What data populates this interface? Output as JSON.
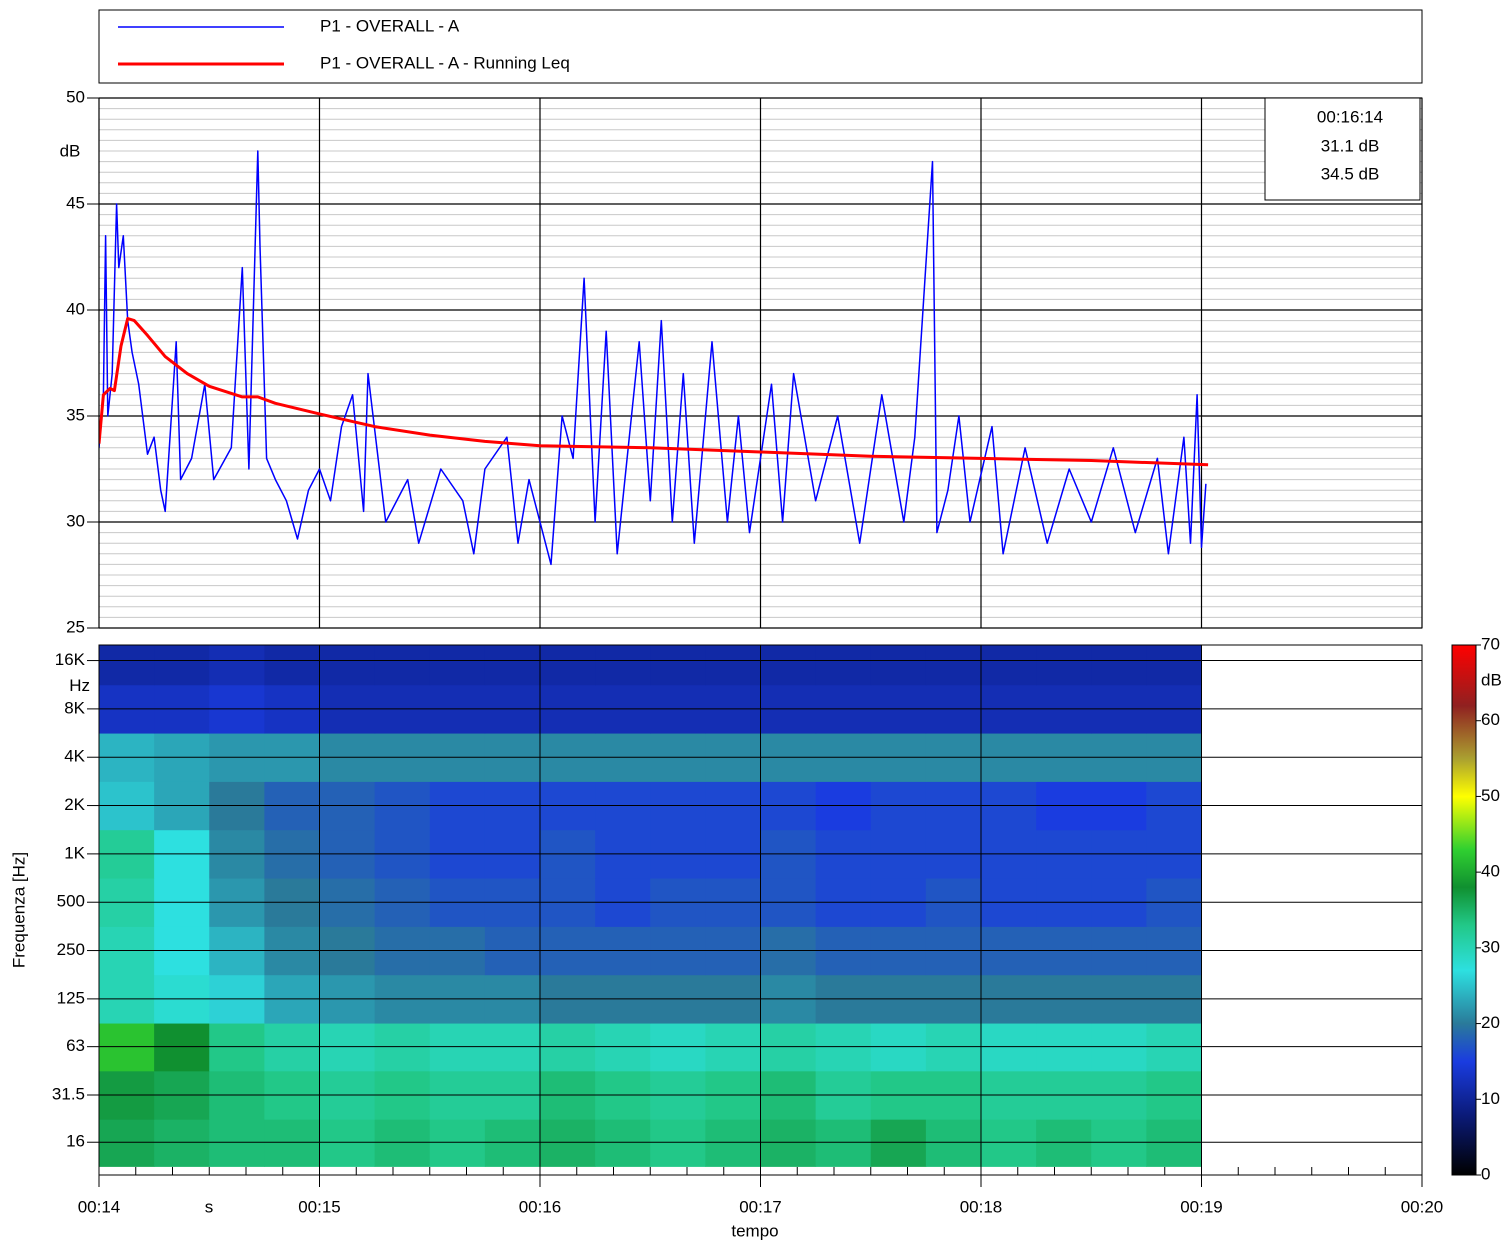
{
  "chart_data": [
    {
      "type": "line",
      "y_label": "dB",
      "xlim": [
        14,
        20
      ],
      "xticks": [
        14,
        15,
        16,
        17,
        18,
        19,
        20
      ],
      "ylim": [
        25,
        50
      ],
      "yticks": [
        25,
        30,
        35,
        40,
        45,
        50
      ],
      "grid": true,
      "series": [
        {
          "name": "P1 - OVERALL - A",
          "color": "#0000ff",
          "x": [
            14.0,
            14.02,
            14.03,
            14.04,
            14.06,
            14.08,
            14.09,
            14.11,
            14.13,
            14.15,
            14.18,
            14.22,
            14.25,
            14.28,
            14.3,
            14.35,
            14.37,
            14.42,
            14.48,
            14.52,
            14.6,
            14.65,
            14.68,
            14.72,
            14.73,
            14.76,
            14.8,
            14.85,
            14.9,
            14.95,
            15.0,
            15.05,
            15.1,
            15.15,
            15.2,
            15.22,
            15.3,
            15.4,
            15.45,
            15.55,
            15.65,
            15.7,
            15.75,
            15.85,
            15.9,
            15.95,
            16.05,
            16.1,
            16.15,
            16.2,
            16.25,
            16.3,
            16.35,
            16.45,
            16.5,
            16.55,
            16.6,
            16.65,
            16.7,
            16.78,
            16.85,
            16.9,
            16.95,
            17.05,
            17.1,
            17.15,
            17.25,
            17.35,
            17.45,
            17.55,
            17.65,
            17.7,
            17.78,
            17.8,
            17.85,
            17.9,
            17.95,
            18.05,
            18.1,
            18.2,
            18.3,
            18.4,
            18.5,
            18.6,
            18.7,
            18.8,
            18.85,
            18.92,
            18.95,
            18.98,
            19.0,
            19.02
          ],
          "values": [
            33.5,
            36,
            43.5,
            35,
            37,
            45,
            42,
            43.5,
            39.5,
            38,
            36.5,
            33.2,
            34,
            31.5,
            30.5,
            38.5,
            32,
            33,
            36.5,
            32,
            33.5,
            42,
            32.5,
            47.5,
            43,
            33,
            32,
            31,
            29.2,
            31.5,
            32.5,
            31,
            34.5,
            36,
            30.5,
            37,
            30,
            32,
            29,
            32.5,
            31,
            28.5,
            32.5,
            34,
            29,
            32,
            28,
            35,
            33,
            41.5,
            30,
            39,
            28.5,
            38.5,
            31,
            39.5,
            30,
            37,
            29,
            38.5,
            30,
            35,
            29.5,
            36.5,
            30,
            37,
            31,
            35,
            29,
            36,
            30,
            34,
            47,
            29.5,
            31.5,
            35,
            30,
            34.5,
            28.5,
            33.5,
            29,
            32.5,
            30,
            33.5,
            29.5,
            33,
            28.5,
            34,
            29,
            36,
            28.8,
            31.8
          ]
        },
        {
          "name": "P1 - OVERALL - A - Running Leq",
          "color": "#ff0000",
          "x": [
            14.0,
            14.02,
            14.05,
            14.07,
            14.1,
            14.13,
            14.16,
            14.22,
            14.3,
            14.4,
            14.5,
            14.65,
            14.72,
            14.8,
            15.0,
            15.25,
            15.5,
            15.75,
            16.0,
            16.5,
            17.0,
            17.5,
            18.0,
            18.5,
            19.03
          ],
          "values": [
            33.7,
            36.0,
            36.3,
            36.2,
            38.3,
            39.6,
            39.5,
            38.8,
            37.8,
            37.0,
            36.4,
            35.9,
            35.9,
            35.6,
            35.1,
            34.5,
            34.1,
            33.8,
            33.6,
            33.5,
            33.3,
            33.1,
            33.0,
            32.9,
            32.7
          ]
        }
      ],
      "cursor": {
        "time": "00:16:14",
        "readouts": [
          "31.1 dB",
          "34.5 dB"
        ]
      }
    },
    {
      "type": "heatmap",
      "x_label": "tempo",
      "x_unit": "s",
      "y_label": "Frequenza [Hz]",
      "y_unit": "Hz",
      "xlim": [
        14,
        20
      ],
      "xticks": [
        {
          "value": 14,
          "label": "00:14"
        },
        {
          "value": 15,
          "label": "00:15"
        },
        {
          "value": 16,
          "label": "00:16"
        },
        {
          "value": 17,
          "label": "00:17"
        },
        {
          "value": 18,
          "label": "00:18"
        },
        {
          "value": 19,
          "label": "00:19"
        },
        {
          "value": 20,
          "label": "00:20"
        }
      ],
      "ylim": [
        10,
        20000
      ],
      "log_y": true,
      "yticks": [
        16,
        31.5,
        63,
        125,
        250,
        500,
        {
          "value": 1000,
          "label": "1K"
        },
        {
          "value": 2000,
          "label": "2K"
        },
        {
          "value": 4000,
          "label": "4K"
        },
        {
          "value": 8000,
          "label": "8K"
        },
        {
          "value": 16000,
          "label": "16K"
        }
      ],
      "x_edges": [
        14,
        14.25,
        14.5,
        14.75,
        15,
        15.25,
        15.5,
        15.75,
        16,
        16.25,
        16.5,
        16.75,
        17,
        17.25,
        17.5,
        17.75,
        18,
        18.25,
        18.5,
        18.75,
        19
      ],
      "frequencies": [
        16,
        31.5,
        63,
        125,
        250,
        500,
        1000,
        2000,
        4000,
        8000,
        16000
      ],
      "values": [
        [
          36,
          35,
          34,
          34,
          33,
          34,
          33,
          34,
          35,
          34,
          33,
          34,
          35,
          34,
          36,
          34,
          33,
          34,
          33,
          34
        ],
        [
          37,
          36,
          34,
          33,
          32,
          33,
          32,
          32,
          34,
          33,
          32,
          33,
          34,
          32,
          33,
          33,
          32,
          32,
          32,
          33
        ],
        [
          42,
          38,
          33,
          31,
          30,
          31,
          30,
          30,
          31,
          30,
          29,
          30,
          31,
          30,
          29,
          30,
          29,
          29,
          29,
          30
        ],
        [
          30,
          28,
          26,
          23,
          22,
          21,
          21,
          21,
          20,
          20,
          20,
          20,
          21,
          20,
          20,
          20,
          20,
          20,
          20,
          20
        ],
        [
          30,
          27,
          24,
          21,
          20,
          19,
          19,
          18,
          18,
          18,
          18,
          18,
          19,
          18,
          18,
          18,
          18,
          18,
          18,
          18
        ],
        [
          31,
          27,
          22,
          20,
          19,
          18,
          17,
          17,
          17,
          16,
          17,
          17,
          17,
          16,
          16,
          17,
          16,
          16,
          16,
          17
        ],
        [
          32,
          27,
          21,
          19,
          18,
          17,
          16,
          16,
          17,
          16,
          16,
          16,
          17,
          16,
          16,
          16,
          16,
          16,
          16,
          16
        ],
        [
          25,
          23,
          20,
          18,
          18,
          17,
          16,
          16,
          16,
          16,
          16,
          16,
          16,
          15,
          16,
          16,
          16,
          15,
          15,
          16
        ],
        [
          24,
          23,
          22,
          22,
          21,
          21,
          21,
          21,
          21,
          21,
          21,
          21,
          21,
          21,
          21,
          21,
          21,
          21,
          21,
          21
        ],
        [
          13,
          13,
          14,
          13,
          12,
          12,
          12,
          12,
          12,
          12,
          12,
          12,
          12,
          12,
          12,
          12,
          12,
          12,
          12,
          12
        ],
        [
          11,
          11,
          12,
          11,
          11,
          11,
          11,
          11,
          11,
          11,
          11,
          11,
          11,
          11,
          11,
          11,
          11,
          11,
          11,
          11
        ]
      ],
      "colorbar": {
        "label": "dB",
        "lim": [
          0,
          70
        ],
        "ticks": [
          0,
          10,
          20,
          30,
          40,
          50,
          60,
          70
        ],
        "colormap": [
          {
            "value": 0,
            "color": "#000000"
          },
          {
            "value": 8,
            "color": "#0b1b7a"
          },
          {
            "value": 15,
            "color": "#1a3ce0"
          },
          {
            "value": 20,
            "color": "#2a7a9a"
          },
          {
            "value": 27,
            "color": "#2de0e0"
          },
          {
            "value": 33,
            "color": "#22c888"
          },
          {
            "value": 38,
            "color": "#109030"
          },
          {
            "value": 43,
            "color": "#30d030"
          },
          {
            "value": 50,
            "color": "#ffff00"
          },
          {
            "value": 55,
            "color": "#aaa030"
          },
          {
            "value": 62,
            "color": "#902020"
          },
          {
            "value": 70,
            "color": "#ff0000"
          }
        ]
      }
    }
  ]
}
